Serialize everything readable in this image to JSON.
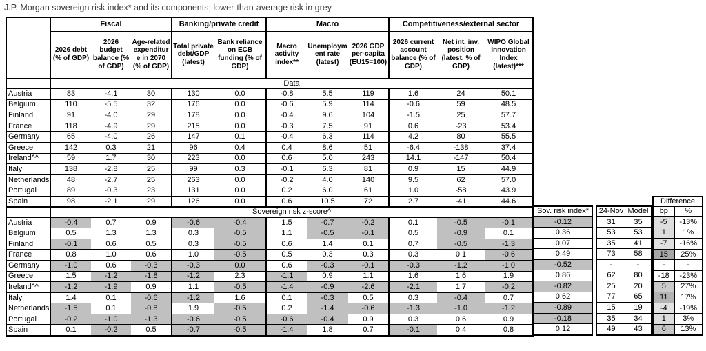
{
  "title": "J.P. Morgan sovereign risk index* and its components; lower-than-average risk in grey",
  "colors": {
    "grey_fill": "#c0c0c0",
    "border": "#000000"
  },
  "main": {
    "groups": [
      {
        "label": "Fiscal",
        "span": 3
      },
      {
        "label": "Banking/private credit",
        "span": 2
      },
      {
        "label": "Macro",
        "span": 3
      },
      {
        "label": "Competitiveness/external sector",
        "span": 3
      }
    ],
    "columns": [
      "2026 debt (% of GDP)",
      "2026 budget balance (% of GDP)",
      "Age-related expenditure in 2070 (% of GDP)",
      "Total private debt/GDP (latest)",
      "Bank reliance on ECB funding (% of GDP)",
      "Macro activity index**",
      "Unemployment rate (latest)",
      "2026 GDP per-capita (EU15=100)",
      "2026 current account balance (% of GDP)",
      "Net int. inv. position (latest, % of GDP)",
      "WIPO Global Innovation Index (latest)***"
    ],
    "data_section_label": "Data",
    "zscore_section_label": "Sovereign risk z-score^",
    "countries": [
      "Austria",
      "Belgium",
      "Finland",
      "France",
      "Germany",
      "Greece",
      "Ireland^^",
      "Italy",
      "Netherlands",
      "Portugal",
      "Spain"
    ],
    "data_rows": [
      [
        "83",
        "-4.1",
        "30",
        "130",
        "0.0",
        "-0.8",
        "5.5",
        "119",
        "1.6",
        "24",
        "50.1"
      ],
      [
        "110",
        "-5.5",
        "32",
        "176",
        "0.0",
        "-0.6",
        "5.9",
        "114",
        "-0.6",
        "59",
        "48.5"
      ],
      [
        "91",
        "-4.0",
        "29",
        "178",
        "0.0",
        "-0.4",
        "9.6",
        "104",
        "-1.5",
        "25",
        "57.7"
      ],
      [
        "118",
        "-4.9",
        "29",
        "215",
        "0.0",
        "-0.3",
        "7.5",
        "91",
        "0.6",
        "-23",
        "53.4"
      ],
      [
        "65",
        "-4.0",
        "26",
        "147",
        "0.1",
        "-0.4",
        "6.3",
        "114",
        "4.2",
        "80",
        "55.5"
      ],
      [
        "142",
        "0.3",
        "21",
        "96",
        "0.4",
        "0.4",
        "8.6",
        "51",
        "-6.4",
        "-138",
        "37.4"
      ],
      [
        "59",
        "1.7",
        "30",
        "223",
        "0.0",
        "0.6",
        "5.0",
        "243",
        "14.1",
        "-147",
        "50.4"
      ],
      [
        "138",
        "-2.8",
        "25",
        "99",
        "0.3",
        "-0.1",
        "6.3",
        "81",
        "0.9",
        "15",
        "44.9"
      ],
      [
        "48",
        "-2.7",
        "25",
        "263",
        "0.0",
        "-0.2",
        "4.0",
        "140",
        "9.5",
        "62",
        "57.0"
      ],
      [
        "89",
        "-0.3",
        "23",
        "131",
        "0.0",
        "0.2",
        "6.0",
        "61",
        "1.0",
        "-58",
        "43.9"
      ],
      [
        "98",
        "-2.1",
        "29",
        "126",
        "0.0",
        "0.6",
        "10.5",
        "72",
        "2.7",
        "-41",
        "44.6"
      ]
    ],
    "zscore_rows": [
      [
        "-0.4",
        "0.7",
        "0.9",
        "-0.6",
        "-0.4",
        "1.5",
        "-0.7",
        "-0.2",
        "0.1",
        "-0.5",
        "-0.1"
      ],
      [
        "0.5",
        "1.3",
        "1.3",
        "0.3",
        "-0.5",
        "1.1",
        "-0.5",
        "-0.1",
        "0.5",
        "-0.9",
        "0.1"
      ],
      [
        "-0.1",
        "0.6",
        "0.5",
        "0.3",
        "-0.5",
        "0.6",
        "1.4",
        "0.1",
        "0.7",
        "-0.5",
        "-1.3"
      ],
      [
        "0.8",
        "1.0",
        "0.6",
        "1.0",
        "-0.5",
        "0.5",
        "0.3",
        "0.3",
        "0.3",
        "0.1",
        "-0.6"
      ],
      [
        "-1.0",
        "0.6",
        "-0.3",
        "-0.3",
        "0.0",
        "0.6",
        "-0.3",
        "-0.1",
        "-0.3",
        "-1.2",
        "-1.0"
      ],
      [
        "1.5",
        "-1.2",
        "-1.8",
        "-1.2",
        "2.3",
        "-1.1",
        "0.9",
        "1.1",
        "1.6",
        "1.6",
        "1.9"
      ],
      [
        "-1.2",
        "-1.9",
        "0.9",
        "1.1",
        "-0.5",
        "-1.4",
        "-0.9",
        "-2.6",
        "-2.1",
        "1.7",
        "-0.2"
      ],
      [
        "1.4",
        "0.1",
        "-0.6",
        "-1.2",
        "1.6",
        "0.1",
        "-0.3",
        "0.5",
        "0.3",
        "-0.4",
        "0.7"
      ],
      [
        "-1.5",
        "0.1",
        "-0.8",
        "1.9",
        "-0.5",
        "0.2",
        "-1.4",
        "-0.6",
        "-1.3",
        "-1.0",
        "-1.2"
      ],
      [
        "-0.2",
        "-1.0",
        "-1.3",
        "-0.6",
        "-0.5",
        "-0.6",
        "-0.4",
        "0.9",
        "0.3",
        "0.6",
        "0.9"
      ],
      [
        "0.1",
        "-0.2",
        "0.5",
        "-0.7",
        "-0.5",
        "-1.4",
        "1.8",
        "0.7",
        "-0.1",
        "0.4",
        "0.8"
      ]
    ],
    "zscore_grey": [
      [
        1,
        0,
        0,
        1,
        1,
        0,
        1,
        1,
        0,
        1,
        1
      ],
      [
        0,
        0,
        0,
        0,
        1,
        0,
        1,
        1,
        0,
        1,
        0
      ],
      [
        1,
        0,
        0,
        0,
        1,
        0,
        0,
        0,
        0,
        1,
        1
      ],
      [
        0,
        0,
        0,
        0,
        1,
        0,
        0,
        0,
        0,
        0,
        1
      ],
      [
        1,
        0,
        1,
        1,
        1,
        0,
        1,
        1,
        1,
        1,
        1
      ],
      [
        0,
        1,
        1,
        1,
        0,
        1,
        0,
        0,
        0,
        0,
        0
      ],
      [
        1,
        1,
        0,
        0,
        1,
        1,
        1,
        1,
        1,
        0,
        1
      ],
      [
        0,
        0,
        1,
        1,
        0,
        0,
        1,
        0,
        0,
        1,
        0
      ],
      [
        1,
        0,
        1,
        0,
        1,
        0,
        1,
        1,
        1,
        1,
        1
      ],
      [
        1,
        1,
        1,
        1,
        1,
        1,
        1,
        0,
        0,
        0,
        0
      ],
      [
        0,
        1,
        0,
        1,
        1,
        1,
        0,
        0,
        1,
        0,
        0
      ]
    ]
  },
  "right": {
    "sov_header": "Sov. risk index*",
    "nov_header": "24-Nov",
    "model_header": "Model",
    "diff_header": "Difference",
    "bp_header": "bp",
    "pct_header": "%",
    "rows": [
      {
        "sov": "-0.12",
        "sov_grey": true,
        "nov": "31",
        "model": "35",
        "bp": "-5",
        "bp_shade": "#dedede",
        "pct": "-13%"
      },
      {
        "sov": "0.36",
        "sov_grey": false,
        "nov": "53",
        "model": "53",
        "bp": "1",
        "bp_shade": "#dcdcdc",
        "pct": "1%"
      },
      {
        "sov": "0.07",
        "sov_grey": false,
        "nov": "35",
        "model": "41",
        "bp": "-7",
        "bp_shade": "#e0e0e0",
        "pct": "-16%"
      },
      {
        "sov": "0.49",
        "sov_grey": false,
        "nov": "73",
        "model": "58",
        "bp": "15",
        "bp_shade": "#a6a6a6",
        "pct": "25%"
      },
      {
        "sov": "-0.52",
        "sov_grey": true,
        "nov": "-",
        "model": "-",
        "bp": "-",
        "bp_shade": "#ffffff",
        "pct": "-"
      },
      {
        "sov": "0.86",
        "sov_grey": false,
        "nov": "62",
        "model": "80",
        "bp": "-18",
        "bp_shade": "#ffffff",
        "pct": "-23%"
      },
      {
        "sov": "-0.82",
        "sov_grey": true,
        "nov": "25",
        "model": "20",
        "bp": "5",
        "bp_shade": "#cacaca",
        "pct": "27%"
      },
      {
        "sov": "0.62",
        "sov_grey": false,
        "nov": "77",
        "model": "65",
        "bp": "11",
        "bp_shade": "#b3b3b3",
        "pct": "17%"
      },
      {
        "sov": "-0.89",
        "sov_grey": true,
        "nov": "15",
        "model": "19",
        "bp": "-4",
        "bp_shade": "#e2e2e2",
        "pct": "-19%"
      },
      {
        "sov": "-0.18",
        "sov_grey": true,
        "nov": "35",
        "model": "34",
        "bp": "1",
        "bp_shade": "#dcdcdc",
        "pct": "3%"
      },
      {
        "sov": "0.12",
        "sov_grey": false,
        "nov": "49",
        "model": "43",
        "bp": "6",
        "bp_shade": "#c6c6c6",
        "pct": "13%"
      }
    ]
  }
}
